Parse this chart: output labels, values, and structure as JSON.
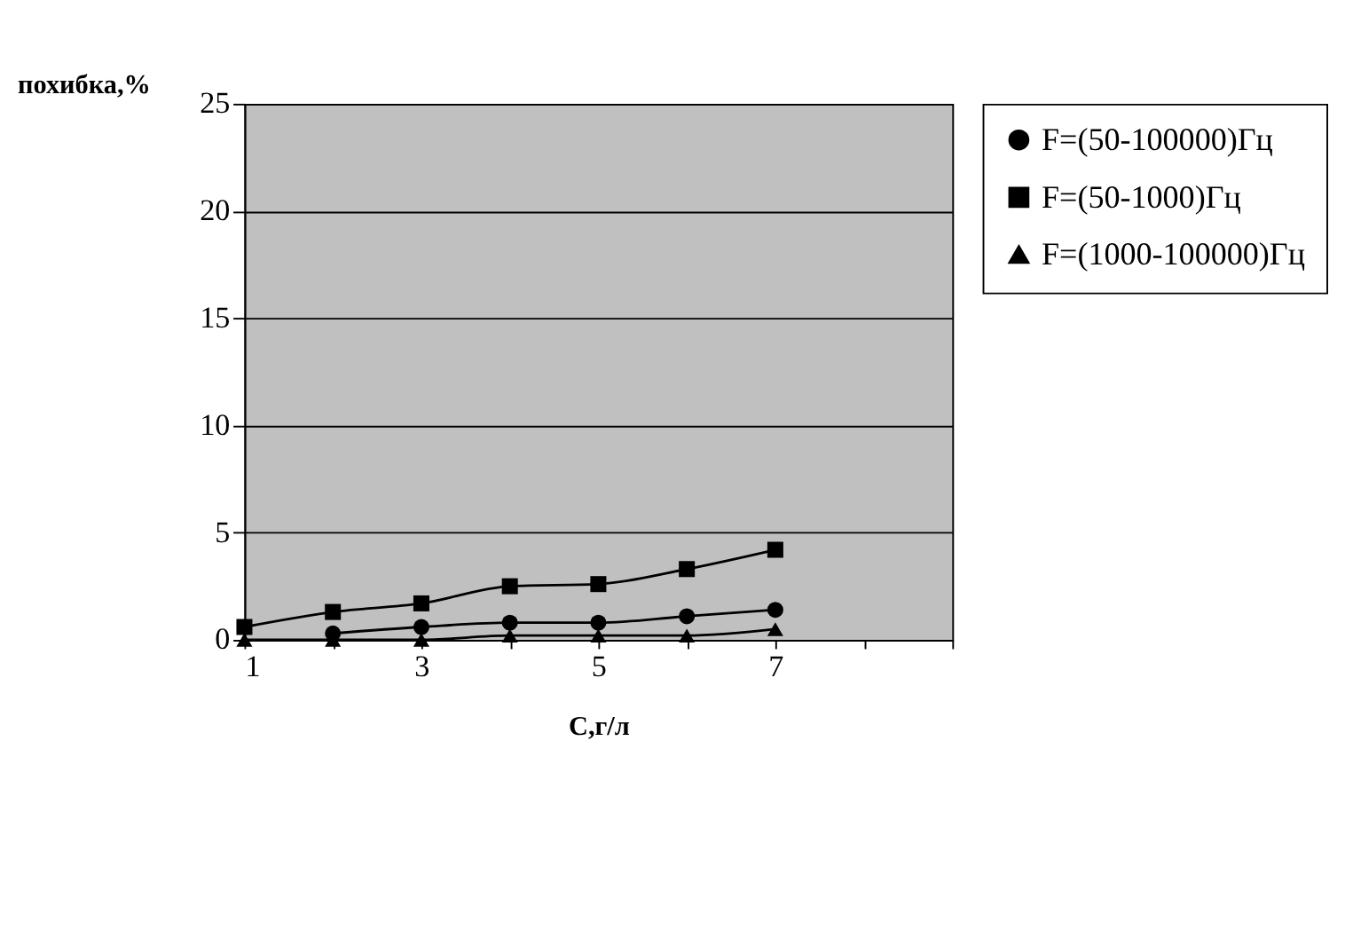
{
  "chart_data": {
    "type": "line",
    "xlabel": "С,г/л",
    "ylabel": "похибка,%",
    "categories": [
      "1",
      null,
      "3",
      null,
      "5",
      null,
      "7",
      null,
      null
    ],
    "series": [
      {
        "name": "F=(50-100000)Гц",
        "color": "#000000",
        "marker": "circle",
        "values": [
          null,
          0.3,
          0.6,
          0.8,
          0.8,
          1.1,
          1.4,
          null,
          null
        ]
      },
      {
        "name": "F=(50-1000)Гц",
        "color": "#000000",
        "marker": "square",
        "values": [
          0.6,
          1.3,
          1.7,
          2.5,
          2.6,
          3.3,
          4.2,
          null,
          null
        ]
      },
      {
        "name": "F=(1000-100000)Гц",
        "color": "#000000",
        "marker": "triangle",
        "values": [
          0.0,
          0.0,
          0.0,
          0.2,
          0.2,
          0.2,
          0.5,
          null,
          null
        ]
      }
    ],
    "ylim": [
      0,
      25
    ],
    "yticks": [
      0,
      5,
      10,
      15,
      20,
      25
    ],
    "grid": "y",
    "legend": "right"
  }
}
